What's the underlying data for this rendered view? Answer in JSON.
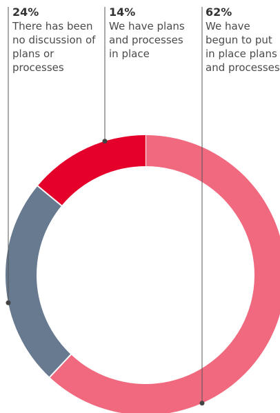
{
  "chart_data": {
    "type": "donut",
    "categories": [
      "We have begun to put in place plans and processes",
      "There has been no discussion of plans or processes",
      "We have plans and processes in place"
    ],
    "values": [
      62,
      24,
      14
    ],
    "value_labels": [
      "62%",
      "24%",
      "14%"
    ],
    "colors": [
      "#f0697f",
      "#687a8f",
      "#e4002b"
    ]
  }
}
